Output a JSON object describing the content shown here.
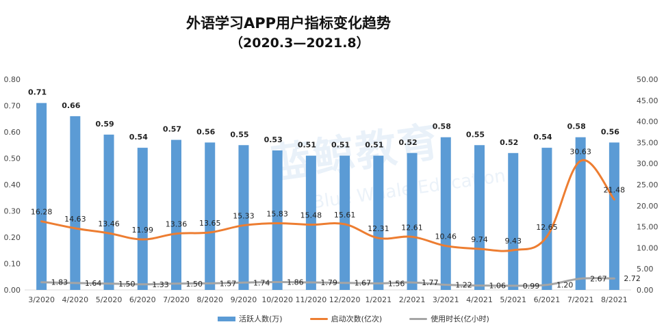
{
  "chart_data": {
    "type": "bar",
    "title": "外语学习APP用户指标变化趋势",
    "subtitle": "（2020.3—2021.8）",
    "categories": [
      "3/2020",
      "4/2020",
      "5/2020",
      "6/2020",
      "7/2020",
      "8/2020",
      "9/2020",
      "10/2020",
      "11/2020",
      "12/2020",
      "1/2021",
      "2/2021",
      "3/2021",
      "4/2021",
      "5/2021",
      "6/2021",
      "7/2021",
      "8/2021"
    ],
    "left_axis": {
      "min": 0,
      "max": 0.8,
      "step": 0.1,
      "tick_labels": [
        "0.00",
        "0.10",
        "0.20",
        "0.30",
        "0.40",
        "0.50",
        "0.60",
        "0.70",
        "0.80"
      ]
    },
    "right_axis": {
      "min": 0,
      "max": 50,
      "step": 5,
      "tick_labels": [
        "0.00",
        "5.00",
        "10.00",
        "15.00",
        "20.00",
        "25.00",
        "30.00",
        "35.00",
        "40.00",
        "45.00",
        "50.00"
      ]
    },
    "series": [
      {
        "name": "活跃人数(万)",
        "kind": "bar",
        "axis": "left",
        "color": "#5b9bd5",
        "values": [
          0.71,
          0.66,
          0.59,
          0.54,
          0.57,
          0.56,
          0.55,
          0.53,
          0.51,
          0.51,
          0.51,
          0.52,
          0.58,
          0.55,
          0.52,
          0.54,
          0.58,
          0.56
        ],
        "labels": [
          "0.71",
          "0.66",
          "0.59",
          "0.54",
          "0.57",
          "0.56",
          "0.55",
          "0.53",
          "0.51",
          "0.51",
          "0.51",
          "0.52",
          "0.58",
          "0.55",
          "0.52",
          "0.54",
          "0.58",
          "0.56"
        ]
      },
      {
        "name": "启动次数(亿次)",
        "kind": "line",
        "axis": "right",
        "color": "#ed7d31",
        "values": [
          16.28,
          14.63,
          13.46,
          11.99,
          13.36,
          13.65,
          15.33,
          15.83,
          15.48,
          15.61,
          12.31,
          12.61,
          10.46,
          9.74,
          9.43,
          12.65,
          30.63,
          21.48
        ],
        "labels": [
          "16.28",
          "14.63",
          "13.46",
          "11.99",
          "13.36",
          "13.65",
          "15.33",
          "15.83",
          "15.48",
          "15.61",
          "12.31",
          "12.61",
          "10.46",
          "9.74",
          "9.43",
          "12.65",
          "30.63",
          "21.48"
        ]
      },
      {
        "name": "使用时长(亿小时)",
        "kind": "line",
        "axis": "right",
        "color": "#a5a5a5",
        "values": [
          1.83,
          1.64,
          1.5,
          1.33,
          1.5,
          1.57,
          1.74,
          1.86,
          1.79,
          1.67,
          1.56,
          1.77,
          1.22,
          1.06,
          0.99,
          1.2,
          2.67,
          2.72
        ],
        "labels": [
          "1.83",
          "1.64",
          "1.50",
          "1.33",
          "1.50",
          "1.57",
          "1.74",
          "1.86",
          "1.79",
          "1.67",
          "1.56",
          "1.77",
          "1.22",
          "1.06",
          "0.99",
          "1.20",
          "2.67",
          "2.72"
        ]
      }
    ],
    "legend_position": "bottom",
    "grid": false
  },
  "watermark": {
    "main": "蓝鲸教育",
    "sub": "Blue Whale Education"
  }
}
